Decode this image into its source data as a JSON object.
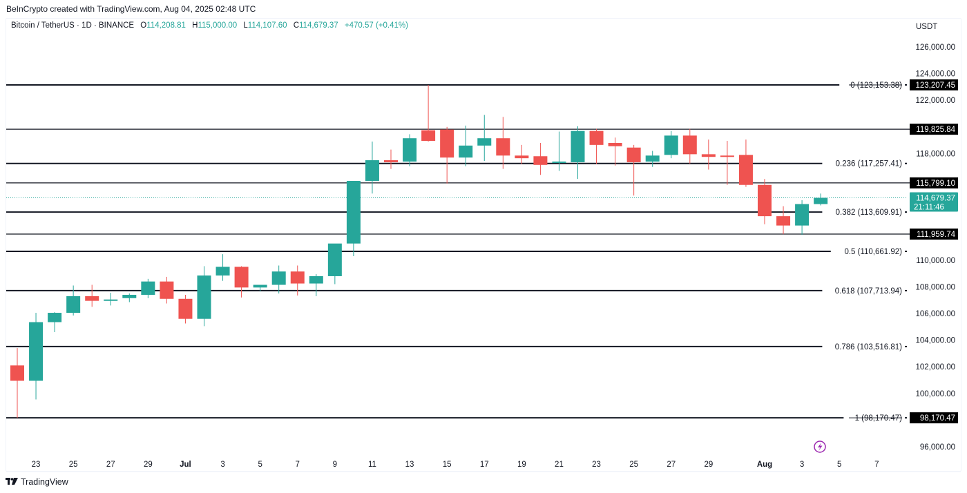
{
  "header": {
    "attribution": "BeInCrypto created with TradingView.com, Aug 04, 2025 02:48 UTC"
  },
  "legend": {
    "symbol": "Bitcoin / TetherUS · 1D · BINANCE",
    "open_label": "O",
    "open": "114,208.81",
    "high_label": "H",
    "high": "115,000.00",
    "low_label": "L",
    "low": "114,107.60",
    "close_label": "C",
    "close": "114,679.37",
    "change": "+470.57 (+0.41%)"
  },
  "price_axis": {
    "currency": "USDT",
    "ticks": [
      "126,000.00",
      "124,000.00",
      "122,000.00",
      "118,000.00",
      "110,000.00",
      "108,000.00",
      "106,000.00",
      "104,000.00",
      "102,000.00",
      "100,000.00",
      "96,000.00"
    ],
    "tick_values": [
      126000,
      124000,
      122000,
      118000,
      110000,
      108000,
      106000,
      104000,
      102000,
      100000,
      96000
    ],
    "current_price_tag": "114,679.37",
    "countdown": "21:11:46"
  },
  "time_axis": {
    "labels": [
      "23",
      "25",
      "27",
      "29",
      "Jul",
      "3",
      "5",
      "7",
      "9",
      "11",
      "13",
      "15",
      "17",
      "19",
      "21",
      "23",
      "25",
      "27",
      "29",
      "Aug",
      "3",
      "5",
      "7"
    ],
    "bold_labels": [
      "Jul",
      "Aug"
    ]
  },
  "horizontal_levels": [
    {
      "price": 119825.84,
      "tag": "119,825.84"
    },
    {
      "price": 115799.1,
      "tag": "115,799.10"
    },
    {
      "price": 111959.74,
      "tag": "111,959.74"
    }
  ],
  "fib_levels": [
    {
      "ratio": "0",
      "price": 123153.38,
      "label": "0 (123,153.38)",
      "tag": "123,207.45"
    },
    {
      "ratio": "0.236",
      "price": 117257.41,
      "label": "0.236 (117,257.41)"
    },
    {
      "ratio": "0.382",
      "price": 113609.91,
      "label": "0.382 (113,609.91)"
    },
    {
      "ratio": "0.5",
      "price": 110661.92,
      "label": "0.5 (110,661.92)"
    },
    {
      "ratio": "0.618",
      "price": 107713.94,
      "label": "0.618 (107,713.94)"
    },
    {
      "ratio": "0.786",
      "price": 103516.81,
      "label": "0.786 (103,516.81)"
    },
    {
      "ratio": "1",
      "price": 98170.47,
      "label": "1 (98,170.47)",
      "tag": "98,170.47"
    }
  ],
  "colors": {
    "up": "#26a69a",
    "down": "#ef5350",
    "level_line": "#131722",
    "event_icon": "#9c27b0"
  },
  "footer": {
    "brand": "TradingView"
  },
  "chart_data": {
    "type": "candlestick",
    "title": "Bitcoin / TetherUS · 1D · BINANCE",
    "ylabel": "USDT",
    "ylim": [
      95200,
      128000
    ],
    "x": [
      "Jun 22",
      "Jun 23",
      "Jun 24",
      "Jun 25",
      "Jun 26",
      "Jun 27",
      "Jun 28",
      "Jun 29",
      "Jun 30",
      "Jul 1",
      "Jul 2",
      "Jul 3",
      "Jul 4",
      "Jul 5",
      "Jul 6",
      "Jul 7",
      "Jul 8",
      "Jul 9",
      "Jul 10",
      "Jul 11",
      "Jul 12",
      "Jul 13",
      "Jul 14",
      "Jul 15",
      "Jul 16",
      "Jul 17",
      "Jul 18",
      "Jul 19",
      "Jul 20",
      "Jul 21",
      "Jul 22",
      "Jul 23",
      "Jul 24",
      "Jul 25",
      "Jul 26",
      "Jul 27",
      "Jul 28",
      "Jul 29",
      "Jul 30",
      "Jul 31",
      "Aug 1",
      "Aug 2",
      "Aug 3",
      "Aug 4"
    ],
    "open": [
      102100,
      100950,
      105350,
      106050,
      107300,
      106950,
      107150,
      107400,
      108400,
      107100,
      105600,
      108850,
      109500,
      107950,
      108150,
      109150,
      108250,
      108800,
      111250,
      115950,
      117500,
      117400,
      119750,
      119800,
      117700,
      118600,
      119150,
      117850,
      117800,
      117300,
      117350,
      119700,
      118800,
      118450,
      117400,
      117900,
      119350,
      117950,
      117850,
      117900,
      115650,
      113300,
      112600,
      114210
    ],
    "high": [
      103400,
      106050,
      106100,
      108100,
      108150,
      107550,
      107500,
      108600,
      108750,
      107400,
      109550,
      110450,
      109550,
      108150,
      109600,
      109600,
      108950,
      111050,
      112050,
      118900,
      118300,
      119450,
      123150,
      120000,
      120100,
      120900,
      120750,
      118650,
      118800,
      119650,
      120050,
      119850,
      119200,
      118650,
      118200,
      119700,
      119850,
      119050,
      118950,
      119050,
      116100,
      114050,
      114500,
      115000
    ],
    "low": [
      98170,
      99550,
      104600,
      105850,
      106500,
      106600,
      106850,
      107150,
      106750,
      105250,
      105050,
      108450,
      107200,
      107650,
      107500,
      107350,
      107300,
      108200,
      110300,
      115000,
      116850,
      117050,
      118900,
      115750,
      117050,
      117450,
      116850,
      117200,
      116400,
      116700,
      116100,
      117200,
      117100,
      114850,
      117000,
      117650,
      117250,
      116800,
      115650,
      115500,
      112700,
      111950,
      111900,
      114108
    ],
    "close": [
      100950,
      105350,
      106050,
      107300,
      106950,
      107050,
      107400,
      108400,
      107100,
      105600,
      108850,
      109500,
      107950,
      108150,
      109150,
      108250,
      108800,
      111250,
      115950,
      117500,
      117350,
      119150,
      118950,
      117700,
      118600,
      119150,
      117850,
      117650,
      117150,
      117400,
      119700,
      118650,
      118550,
      117350,
      117850,
      119350,
      117950,
      117750,
      117750,
      115650,
      113300,
      112600,
      114210,
      114679.37
    ],
    "horizontal_lines": [
      123153.38,
      119825.84,
      117257.41,
      115799.1,
      113609.91,
      111959.74,
      110661.92,
      107713.94,
      103516.81,
      98170.47
    ],
    "fibonacci_retracement": {
      "0": 123153.38,
      "0.236": 117257.41,
      "0.382": 113609.91,
      "0.5": 110661.92,
      "0.618": 107713.94,
      "0.786": 103516.81,
      "1": 98170.47
    },
    "last_price": 114679.37,
    "grid": false,
    "legend_position": "top-left"
  }
}
